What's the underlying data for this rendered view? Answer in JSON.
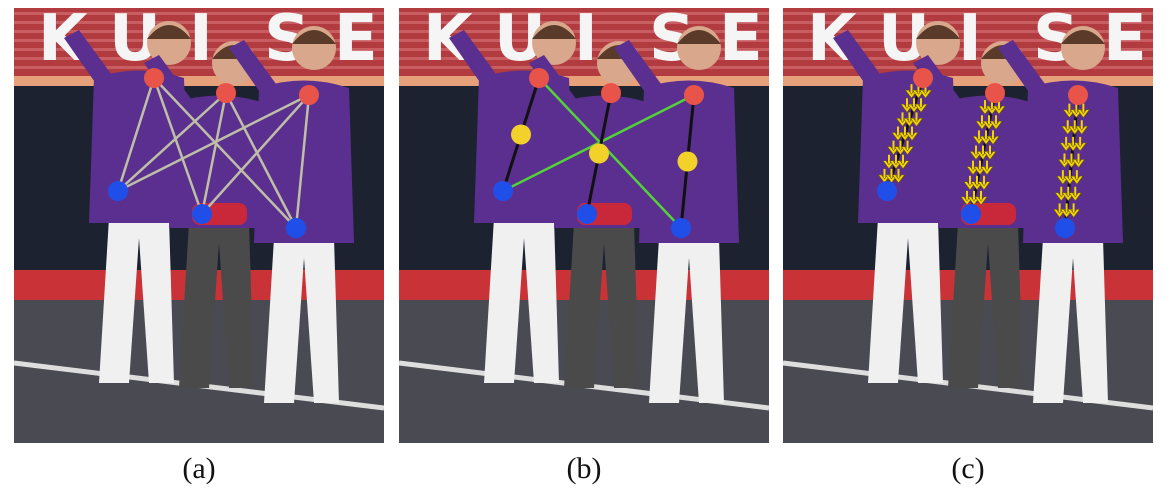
{
  "figure": {
    "panels": [
      {
        "id": "a",
        "caption": "(a)",
        "mode": "all-pairs",
        "edge_color": "#bfbfa8"
      },
      {
        "id": "b",
        "caption": "(b)",
        "mode": "midpoint",
        "edge_color_body": "#111111",
        "edge_color_cross": "#52d33a"
      },
      {
        "id": "c",
        "caption": "(c)",
        "mode": "vector-field",
        "edge_color": "#111111",
        "arrow_color": "#f5d600"
      }
    ],
    "backdrop_lettering": [
      "K",
      "U",
      "I",
      "S",
      "E"
    ],
    "keypoint_colors": {
      "head": "#e8544a",
      "hip": "#1f4fe8",
      "midpoint": "#f2d12a"
    }
  }
}
